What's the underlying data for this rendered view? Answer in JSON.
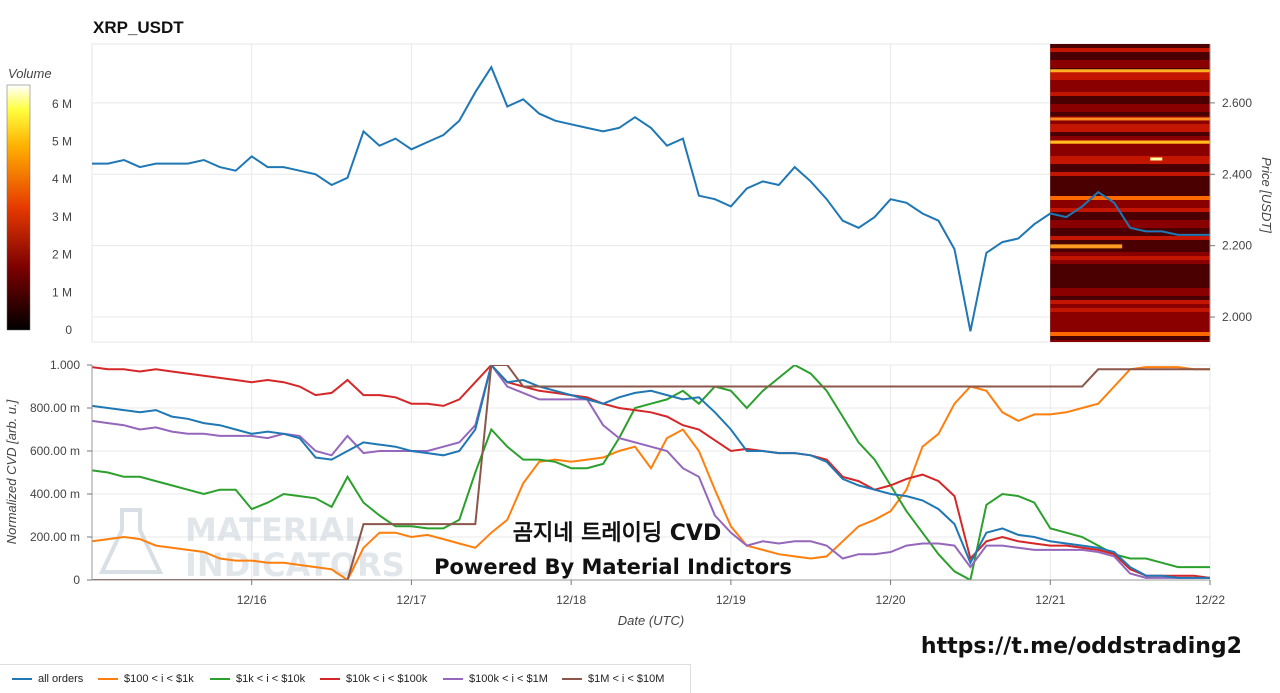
{
  "colors": {
    "all_orders": "#1f77b4",
    "r100_1k": "#ff7f0e",
    "r1k_10k": "#2ca02c",
    "r10k_100k": "#d62728",
    "r100k_1m": "#9467bd",
    "r1m_10m": "#8c564b",
    "grid": "#e8e8e8",
    "watermark_text": "#111111",
    "logo": "#c9d3dc"
  },
  "watermark": {
    "title": "곰지네 트레이딩 CVD",
    "subtitle": "Powered By Material Indictors",
    "url": "https://t.me/oddstrading2",
    "logo_line1": "MATERIAL",
    "logo_line2": "INDICATORS"
  },
  "chart_data": [
    {
      "type": "line",
      "title": "XRP_USDT",
      "ylabel": "Price [USDT]",
      "ylim": [
        1.93,
        2.765
      ],
      "yticks": [
        "2.000",
        "2.200",
        "2.400",
        "2.600"
      ],
      "yticks_values": [
        2.0,
        2.2,
        2.4,
        2.6
      ],
      "xlim_days": [
        15.0,
        22.0
      ],
      "colorbar": {
        "label": "Volume",
        "ticks": [
          "0",
          "1 M",
          "2 M",
          "3 M",
          "4 M",
          "5 M",
          "6 M"
        ],
        "max": 6.5
      },
      "heatmap_region": "right side, 12/21 to 12/22",
      "series": [
        {
          "name": "price",
          "x": [
            15.0,
            15.1,
            15.2,
            15.3,
            15.4,
            15.5,
            15.6,
            15.7,
            15.8,
            15.9,
            16.0,
            16.1,
            16.2,
            16.3,
            16.4,
            16.5,
            16.6,
            16.7,
            16.8,
            16.9,
            17.0,
            17.1,
            17.2,
            17.3,
            17.4,
            17.5,
            17.6,
            17.7,
            17.8,
            17.9,
            18.0,
            18.1,
            18.2,
            18.3,
            18.4,
            18.5,
            18.6,
            18.7,
            18.8,
            18.9,
            19.0,
            19.1,
            19.2,
            19.3,
            19.4,
            19.5,
            19.6,
            19.7,
            19.8,
            19.9,
            20.0,
            20.1,
            20.2,
            20.3,
            20.4,
            20.5,
            20.6,
            20.7,
            20.8,
            20.9,
            21.0,
            21.1,
            21.2,
            21.3,
            21.4,
            21.5,
            21.6,
            21.7,
            21.8,
            21.9,
            22.0
          ],
          "y": [
            2.43,
            2.43,
            2.44,
            2.42,
            2.43,
            2.43,
            2.43,
            2.44,
            2.42,
            2.41,
            2.45,
            2.42,
            2.42,
            2.41,
            2.4,
            2.37,
            2.39,
            2.52,
            2.48,
            2.5,
            2.47,
            2.49,
            2.51,
            2.55,
            2.63,
            2.7,
            2.59,
            2.61,
            2.57,
            2.55,
            2.54,
            2.53,
            2.52,
            2.53,
            2.56,
            2.53,
            2.48,
            2.5,
            2.34,
            2.33,
            2.31,
            2.36,
            2.38,
            2.37,
            2.42,
            2.38,
            2.33,
            2.27,
            2.25,
            2.28,
            2.33,
            2.32,
            2.29,
            2.27,
            2.19,
            1.96,
            2.18,
            2.21,
            2.22,
            2.26,
            2.29,
            2.28,
            2.31,
            2.35,
            2.32,
            2.25,
            2.24,
            2.24,
            2.23,
            2.23,
            2.23
          ]
        }
      ]
    },
    {
      "type": "line",
      "xlabel": "Date (UTC)",
      "ylabel": "Normalized CVD [arb. u.]",
      "ylim": [
        0,
        1.0
      ],
      "yticks": [
        "0",
        "200.00 m",
        "400.00 m",
        "600.00 m",
        "800.00 m",
        "1.000"
      ],
      "yticks_values": [
        0,
        0.2,
        0.4,
        0.6,
        0.8,
        1.0
      ],
      "xlim_days": [
        15.0,
        22.0
      ],
      "xticks": [
        "12/16",
        "12/17",
        "12/18",
        "12/19",
        "12/20",
        "12/21",
        "12/22"
      ],
      "xticks_values": [
        16,
        17,
        18,
        19,
        20,
        21,
        22
      ],
      "x": [
        15.0,
        15.1,
        15.2,
        15.3,
        15.4,
        15.5,
        15.6,
        15.7,
        15.8,
        15.9,
        16.0,
        16.1,
        16.2,
        16.3,
        16.4,
        16.5,
        16.6,
        16.7,
        16.8,
        16.9,
        17.0,
        17.1,
        17.2,
        17.3,
        17.4,
        17.5,
        17.6,
        17.7,
        17.8,
        17.9,
        18.0,
        18.1,
        18.2,
        18.3,
        18.4,
        18.5,
        18.6,
        18.7,
        18.8,
        18.9,
        19.0,
        19.1,
        19.2,
        19.3,
        19.4,
        19.5,
        19.6,
        19.7,
        19.8,
        19.9,
        20.0,
        20.1,
        20.2,
        20.3,
        20.4,
        20.5,
        20.6,
        20.7,
        20.8,
        20.9,
        21.0,
        21.1,
        21.2,
        21.3,
        21.4,
        21.5,
        21.6,
        21.7,
        21.8,
        21.9,
        22.0
      ],
      "series": [
        {
          "name": "all orders",
          "color_key": "all_orders",
          "values": [
            0.81,
            0.8,
            0.79,
            0.78,
            0.79,
            0.76,
            0.75,
            0.73,
            0.72,
            0.7,
            0.68,
            0.69,
            0.68,
            0.66,
            0.57,
            0.56,
            0.6,
            0.64,
            0.63,
            0.62,
            0.6,
            0.59,
            0.58,
            0.6,
            0.7,
            1.0,
            0.92,
            0.93,
            0.9,
            0.88,
            0.86,
            0.84,
            0.82,
            0.85,
            0.87,
            0.88,
            0.86,
            0.84,
            0.85,
            0.78,
            0.7,
            0.6,
            0.6,
            0.59,
            0.59,
            0.58,
            0.55,
            0.47,
            0.44,
            0.42,
            0.4,
            0.39,
            0.37,
            0.33,
            0.26,
            0.08,
            0.22,
            0.24,
            0.21,
            0.2,
            0.18,
            0.17,
            0.16,
            0.15,
            0.13,
            0.06,
            0.02,
            0.02,
            0.01,
            0.01,
            0.01
          ]
        },
        {
          "name": "$100 < i < $1k",
          "color_key": "r100_1k",
          "values": [
            0.18,
            0.19,
            0.2,
            0.19,
            0.16,
            0.15,
            0.14,
            0.13,
            0.1,
            0.09,
            0.09,
            0.08,
            0.08,
            0.07,
            0.06,
            0.05,
            0.0,
            0.15,
            0.22,
            0.22,
            0.2,
            0.21,
            0.19,
            0.17,
            0.15,
            0.22,
            0.28,
            0.45,
            0.55,
            0.56,
            0.55,
            0.56,
            0.57,
            0.6,
            0.62,
            0.52,
            0.66,
            0.7,
            0.6,
            0.42,
            0.25,
            0.16,
            0.14,
            0.12,
            0.11,
            0.1,
            0.11,
            0.18,
            0.25,
            0.28,
            0.32,
            0.42,
            0.62,
            0.68,
            0.82,
            0.9,
            0.88,
            0.78,
            0.74,
            0.77,
            0.77,
            0.78,
            0.8,
            0.82,
            0.9,
            0.98,
            0.99,
            0.99,
            0.99,
            0.98,
            0.98
          ]
        },
        {
          "name": "$1k < i < $10k",
          "color_key": "r1k_10k",
          "values": [
            0.51,
            0.5,
            0.48,
            0.48,
            0.46,
            0.44,
            0.42,
            0.4,
            0.42,
            0.42,
            0.33,
            0.36,
            0.4,
            0.39,
            0.38,
            0.34,
            0.48,
            0.36,
            0.3,
            0.25,
            0.25,
            0.24,
            0.24,
            0.28,
            0.5,
            0.7,
            0.62,
            0.56,
            0.56,
            0.55,
            0.52,
            0.52,
            0.54,
            0.66,
            0.8,
            0.82,
            0.84,
            0.88,
            0.82,
            0.9,
            0.88,
            0.8,
            0.88,
            0.94,
            1.0,
            0.96,
            0.88,
            0.76,
            0.64,
            0.56,
            0.44,
            0.32,
            0.22,
            0.12,
            0.04,
            0.0,
            0.35,
            0.4,
            0.39,
            0.36,
            0.24,
            0.22,
            0.2,
            0.16,
            0.12,
            0.1,
            0.1,
            0.08,
            0.06,
            0.06,
            0.06
          ]
        },
        {
          "name": "$10k < i < $100k",
          "color_key": "r10k_100k",
          "values": [
            0.99,
            0.98,
            0.98,
            0.97,
            0.98,
            0.97,
            0.96,
            0.95,
            0.94,
            0.93,
            0.92,
            0.93,
            0.92,
            0.9,
            0.86,
            0.87,
            0.93,
            0.86,
            0.86,
            0.85,
            0.82,
            0.82,
            0.81,
            0.84,
            0.92,
            1.0,
            0.92,
            0.9,
            0.88,
            0.87,
            0.86,
            0.85,
            0.82,
            0.8,
            0.79,
            0.78,
            0.76,
            0.72,
            0.7,
            0.65,
            0.6,
            0.61,
            0.6,
            0.59,
            0.59,
            0.58,
            0.56,
            0.48,
            0.46,
            0.42,
            0.44,
            0.47,
            0.49,
            0.46,
            0.39,
            0.1,
            0.18,
            0.2,
            0.18,
            0.17,
            0.16,
            0.16,
            0.15,
            0.14,
            0.12,
            0.05,
            0.02,
            0.02,
            0.02,
            0.02,
            0.01
          ]
        },
        {
          "name": "$100k < i < $1M",
          "color_key": "r100k_1m",
          "values": [
            0.74,
            0.73,
            0.72,
            0.7,
            0.71,
            0.69,
            0.68,
            0.68,
            0.67,
            0.67,
            0.67,
            0.66,
            0.68,
            0.67,
            0.6,
            0.58,
            0.67,
            0.59,
            0.6,
            0.6,
            0.6,
            0.6,
            0.62,
            0.64,
            0.72,
            1.0,
            0.9,
            0.87,
            0.84,
            0.84,
            0.84,
            0.84,
            0.72,
            0.66,
            0.64,
            0.62,
            0.6,
            0.52,
            0.48,
            0.3,
            0.22,
            0.16,
            0.18,
            0.17,
            0.18,
            0.18,
            0.16,
            0.1,
            0.12,
            0.12,
            0.13,
            0.16,
            0.17,
            0.17,
            0.16,
            0.06,
            0.16,
            0.16,
            0.15,
            0.14,
            0.14,
            0.14,
            0.14,
            0.13,
            0.11,
            0.03,
            0.01,
            0.01,
            0.01,
            0.01,
            0.01
          ]
        },
        {
          "name": "$1M < i < $10M",
          "color_key": "r1m_10m",
          "values": [
            0.0,
            0.0,
            0.0,
            0.0,
            0.0,
            0.0,
            0.0,
            0.0,
            0.0,
            0.0,
            0.0,
            0.0,
            0.0,
            0.0,
            0.0,
            0.0,
            0.0,
            0.26,
            0.26,
            0.26,
            0.26,
            0.26,
            0.26,
            0.26,
            0.26,
            1.0,
            1.0,
            0.9,
            0.9,
            0.9,
            0.9,
            0.9,
            0.9,
            0.9,
            0.9,
            0.9,
            0.9,
            0.9,
            0.9,
            0.9,
            0.9,
            0.9,
            0.9,
            0.9,
            0.9,
            0.9,
            0.9,
            0.9,
            0.9,
            0.9,
            0.9,
            0.9,
            0.9,
            0.9,
            0.9,
            0.9,
            0.9,
            0.9,
            0.9,
            0.9,
            0.9,
            0.9,
            0.9,
            0.98,
            0.98,
            0.98,
            0.98,
            0.98,
            0.98,
            0.98,
            0.98
          ]
        }
      ],
      "legend": [
        "all orders",
        "$100 < i < $1k",
        "$1k < i < $10k",
        "$10k < i < $100k",
        "$100k < i < $1M",
        "$1M < i < $10M"
      ],
      "legend_position": "bottom-left"
    }
  ]
}
